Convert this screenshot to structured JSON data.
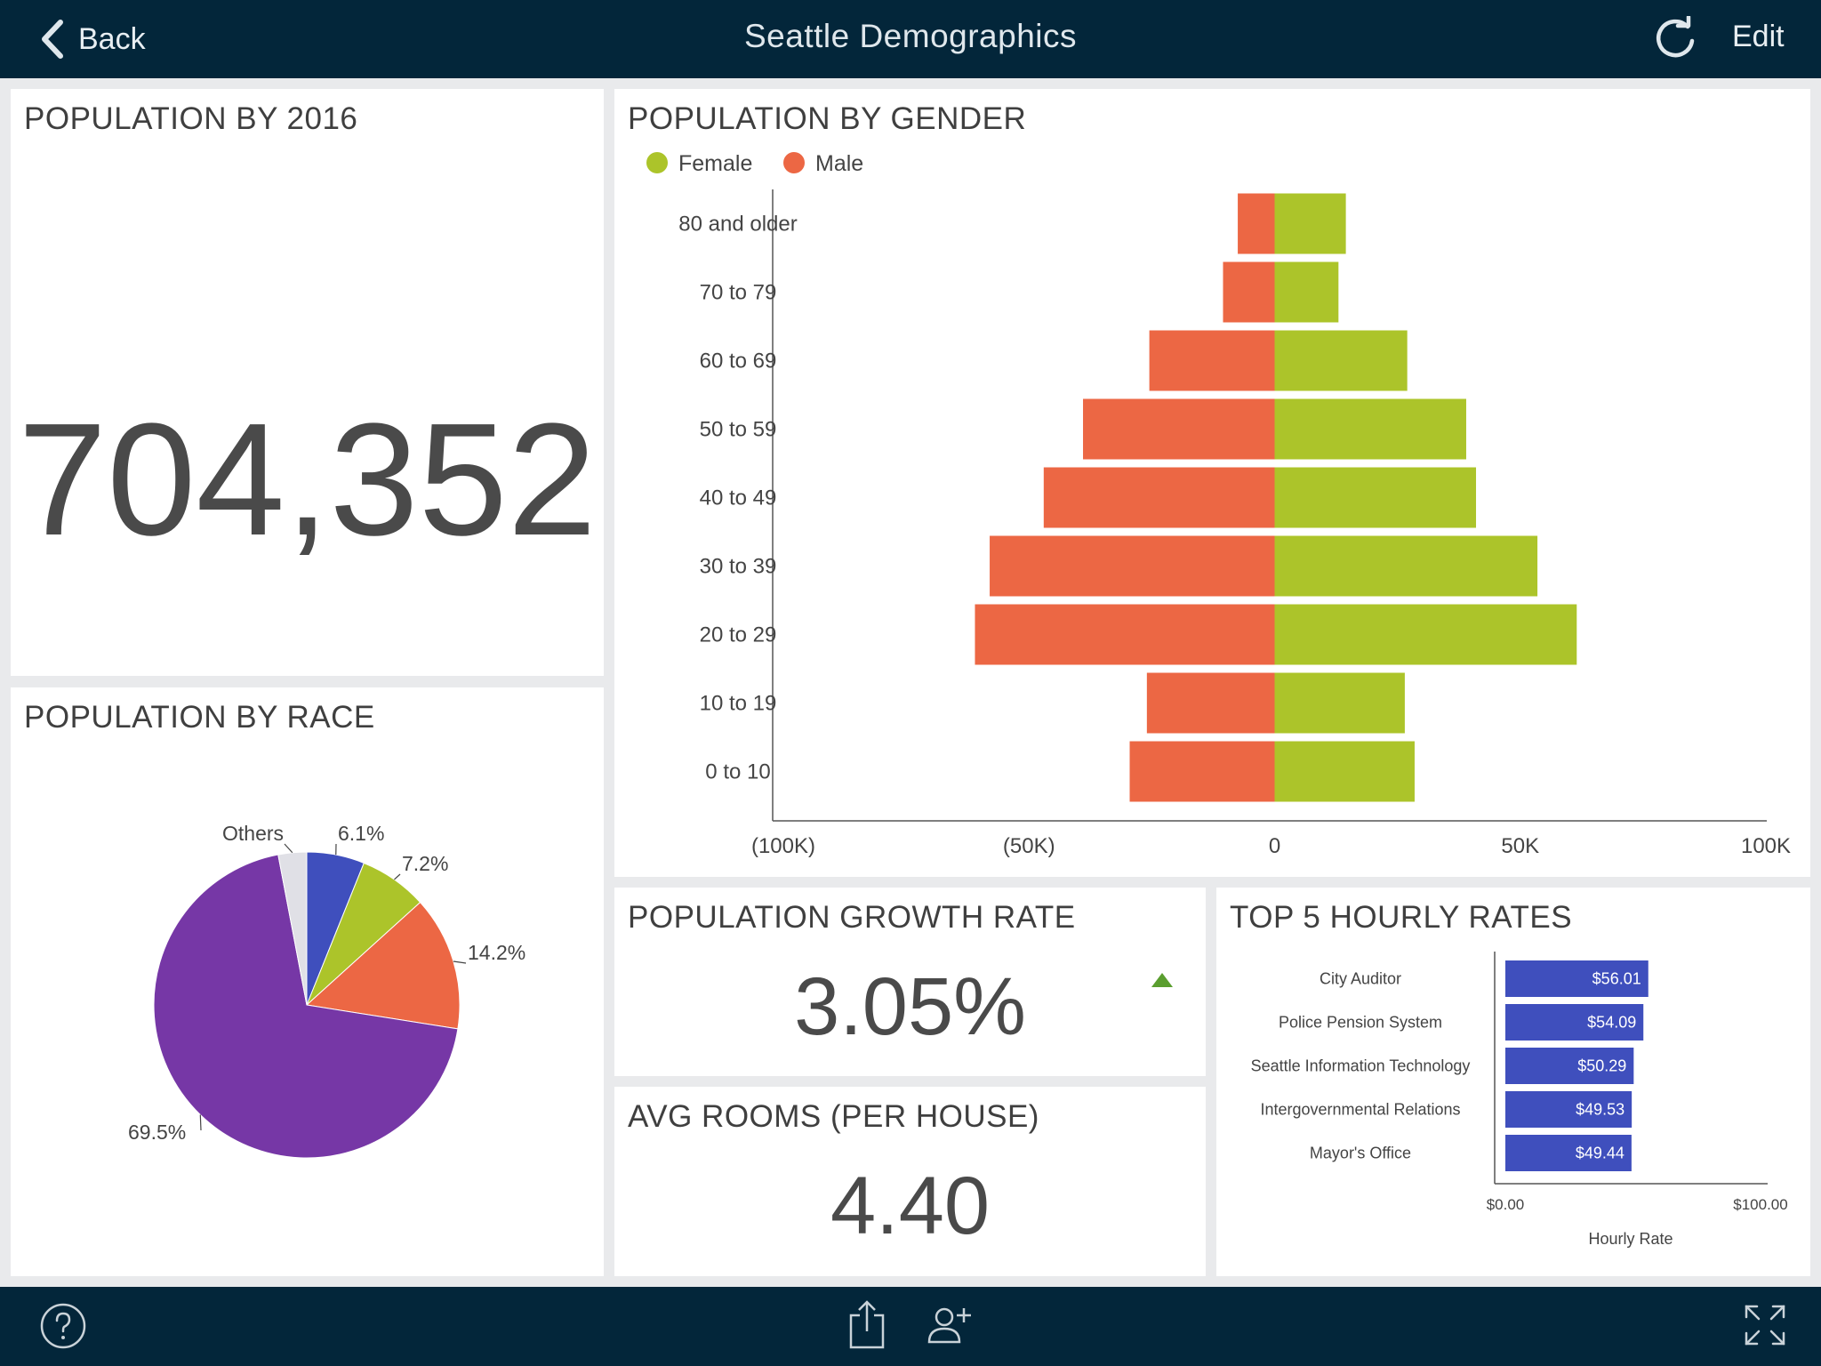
{
  "header": {
    "back_label": "Back",
    "title": "Seattle Demographics",
    "edit_label": "Edit",
    "refresh_icon": "refresh-icon",
    "back_icon": "chevron-left-icon"
  },
  "colors": {
    "navbar": "#03263a",
    "female": "#acc42a",
    "male": "#ec6744",
    "purple": "#7637a6",
    "blue": "#3f4fbd",
    "grey": "#e0e0e6",
    "trend_up": "#5a9e2f"
  },
  "population_total": {
    "title": "POPULATION BY 2016",
    "value": "704,352"
  },
  "population_by_race": {
    "title": "POPULATION BY RACE",
    "chart_data": {
      "type": "pie",
      "slices": [
        {
          "label": "6.1%",
          "value": 6.1,
          "color": "#3f4fbd"
        },
        {
          "label": "7.2%",
          "value": 7.2,
          "color": "#acc42a"
        },
        {
          "label": "14.2%",
          "value": 14.2,
          "color": "#ec6744"
        },
        {
          "label": "69.5%",
          "value": 69.5,
          "color": "#7637a6"
        },
        {
          "label": "Others",
          "value": 3.0,
          "color": "#e0e0e6"
        }
      ]
    }
  },
  "population_by_gender": {
    "title": "POPULATION BY GENDER",
    "chart_data": {
      "type": "bar",
      "orientation": "horizontal-diverging",
      "categories": [
        "80 and older",
        "70 to 79",
        "60 to 69",
        "50 to 59",
        "40 to 49",
        "30 to 39",
        "20 to 29",
        "10 to 19",
        "0 to 10"
      ],
      "series": [
        {
          "name": "Female",
          "color": "#acc42a",
          "values": [
            14500,
            13000,
            27000,
            39000,
            41000,
            53500,
            61500,
            26500,
            28500
          ]
        },
        {
          "name": "Male",
          "color": "#ec6744",
          "values": [
            -7500,
            -10500,
            -25500,
            -39000,
            -47000,
            -58000,
            -61000,
            -26000,
            -29500
          ]
        }
      ],
      "xlim": [
        -100000,
        100000
      ],
      "xticks": [
        {
          "value": -100000,
          "label": "(100K)"
        },
        {
          "value": -50000,
          "label": "(50K)"
        },
        {
          "value": 0,
          "label": "0"
        },
        {
          "value": 50000,
          "label": "50K"
        },
        {
          "value": 100000,
          "label": "100K"
        }
      ],
      "legend": "top-left"
    }
  },
  "growth_rate": {
    "title": "POPULATION GROWTH RATE",
    "value": "3.05%",
    "trend_icon": "trend-up-triangle-icon"
  },
  "avg_rooms": {
    "title": "AVG ROOMS (PER HOUSE)",
    "value": "4.40"
  },
  "hourly_rates": {
    "title": "TOP 5 HOURLY RATES",
    "chart_data": {
      "type": "bar",
      "orientation": "horizontal",
      "categories": [
        "City Auditor",
        "Police Pension System",
        "Seattle Information Technology",
        "Intergovernmental Relations",
        "Mayor's Office"
      ],
      "values": [
        56.01,
        54.09,
        50.29,
        49.53,
        49.44
      ],
      "value_labels": [
        "$56.01",
        "$54.09",
        "$50.29",
        "$49.53",
        "$49.44"
      ],
      "xlim": [
        0,
        100
      ],
      "xtick_labels": [
        "$0.00",
        "$100.00"
      ],
      "xlabel": "Hourly Rate",
      "color": "#3f4fbd"
    }
  },
  "footer": {
    "help_icon": "help-circle-icon",
    "share_icon": "share-icon",
    "add_user_icon": "add-user-icon",
    "fullscreen_icon": "fullscreen-icon"
  }
}
